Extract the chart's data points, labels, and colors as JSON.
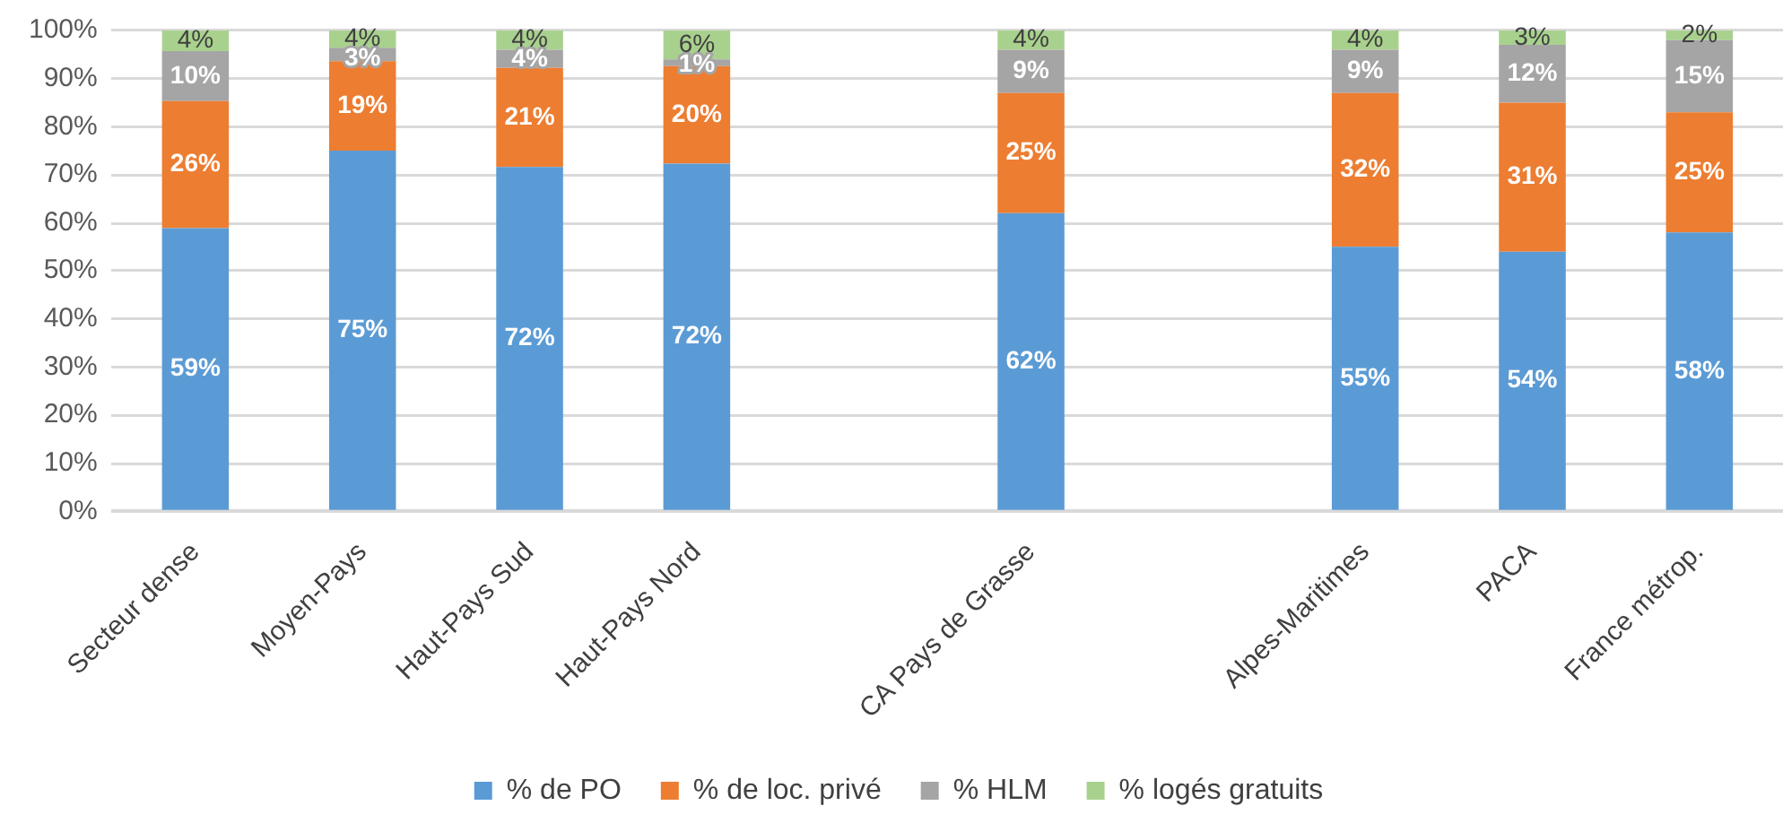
{
  "chart_data": {
    "type": "bar",
    "stacked": true,
    "categories": [
      "Secteur dense",
      "Moyen-Pays",
      "Haut-Pays Sud",
      "Haut-Pays Nord",
      null,
      "CA Pays de Grasse",
      null,
      "Alpes-Maritimes",
      "PACA",
      "France métrop."
    ],
    "series": [
      {
        "name": "% de PO",
        "color": "#5b9bd5",
        "values": [
          58.9,
          75.0,
          71.6,
          72.3,
          null,
          62,
          null,
          55,
          54,
          58
        ],
        "value_labels": [
          "59%",
          "75%",
          "72%",
          "72%",
          null,
          "62%",
          null,
          "55%",
          "54%",
          "58%"
        ]
      },
      {
        "name": "% de loc. privé",
        "color": "#ed7d31",
        "values": [
          26.4,
          18.6,
          20.6,
          20.3,
          null,
          25,
          null,
          32,
          31,
          25
        ],
        "value_labels": [
          "26%",
          "19%",
          "21%",
          "20%",
          null,
          "25%",
          null,
          "32%",
          "31%",
          "25%"
        ]
      },
      {
        "name": "% HLM",
        "color": "#a5a5a5",
        "values": [
          10.4,
          2.8,
          3.8,
          1.4,
          null,
          9,
          null,
          9,
          12,
          15
        ],
        "value_labels": [
          "10%",
          "3%",
          "4%",
          "1%",
          null,
          "9%",
          null,
          "9%",
          "12%",
          "15%"
        ]
      },
      {
        "name": "% logés gratuits",
        "color": "#a9d18e",
        "values": [
          4.3,
          3.6,
          4.0,
          6.0,
          null,
          4,
          null,
          4,
          3,
          2
        ],
        "value_labels": [
          "4%",
          "4%",
          "4%",
          "6%",
          null,
          "4%",
          null,
          "4%",
          "3%",
          "2%"
        ]
      }
    ],
    "ylim": [
      0,
      100
    ],
    "yticks": [
      {
        "value": 0,
        "label": "0%"
      },
      {
        "value": 10,
        "label": "10%"
      },
      {
        "value": 20,
        "label": "20%"
      },
      {
        "value": 30,
        "label": "30%"
      },
      {
        "value": 40,
        "label": "40%"
      },
      {
        "value": 50,
        "label": "50%"
      },
      {
        "value": 60,
        "label": "60%"
      },
      {
        "value": 70,
        "label": "70%"
      },
      {
        "value": 80,
        "label": "80%"
      },
      {
        "value": 90,
        "label": "90%"
      },
      {
        "value": 100,
        "label": "100%"
      }
    ],
    "grid": "y",
    "legend": "bottom"
  }
}
